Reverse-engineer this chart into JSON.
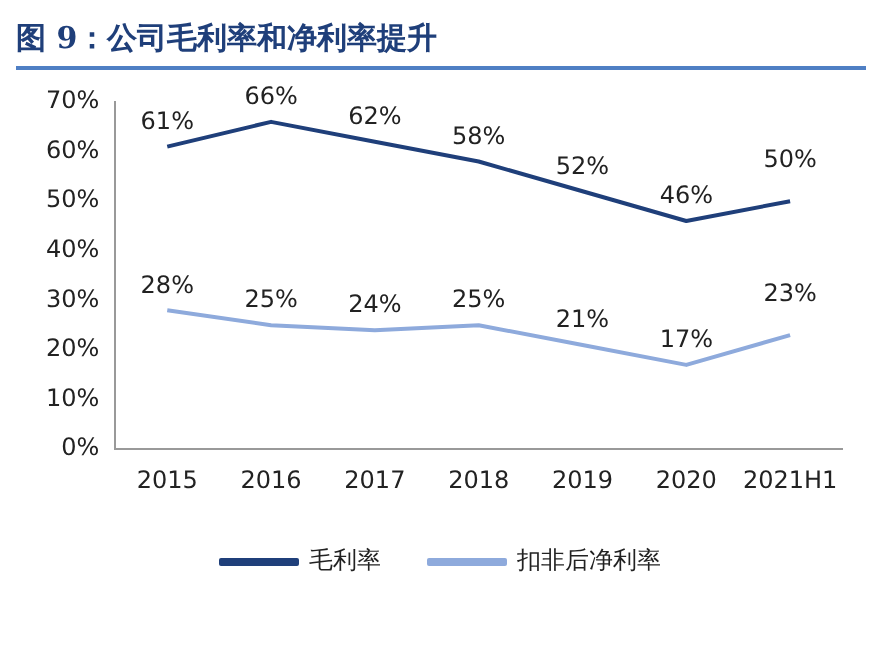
{
  "chart_data": {
    "type": "line",
    "title": "图 9：公司毛利率和净利率提升",
    "categories": [
      "2015",
      "2016",
      "2017",
      "2018",
      "2019",
      "2020",
      "2021H1"
    ],
    "series": [
      {
        "name": "毛利率",
        "color": "#1f3f7a",
        "values": [
          61,
          66,
          62,
          58,
          52,
          46,
          50
        ],
        "value_labels": [
          "61%",
          "66%",
          "62%",
          "58%",
          "52%",
          "46%",
          "50%"
        ]
      },
      {
        "name": "扣非后净利率",
        "color": "#8eaadc",
        "values": [
          28,
          25,
          24,
          25,
          21,
          17,
          23
        ],
        "value_labels": [
          "28%",
          "25%",
          "24%",
          "25%",
          "21%",
          "17%",
          "23%"
        ]
      }
    ],
    "ylim": [
      0,
      70
    ],
    "yticks": [
      {
        "value": 0,
        "label": "0%"
      },
      {
        "value": 10,
        "label": "10%"
      },
      {
        "value": 20,
        "label": "20%"
      },
      {
        "value": 30,
        "label": "30%"
      },
      {
        "value": 40,
        "label": "40%"
      },
      {
        "value": 50,
        "label": "50%"
      },
      {
        "value": 60,
        "label": "60%"
      },
      {
        "value": 70,
        "label": "70%"
      }
    ],
    "grid": false,
    "legend": "bottom",
    "marker": "none",
    "line_style": "solid"
  }
}
